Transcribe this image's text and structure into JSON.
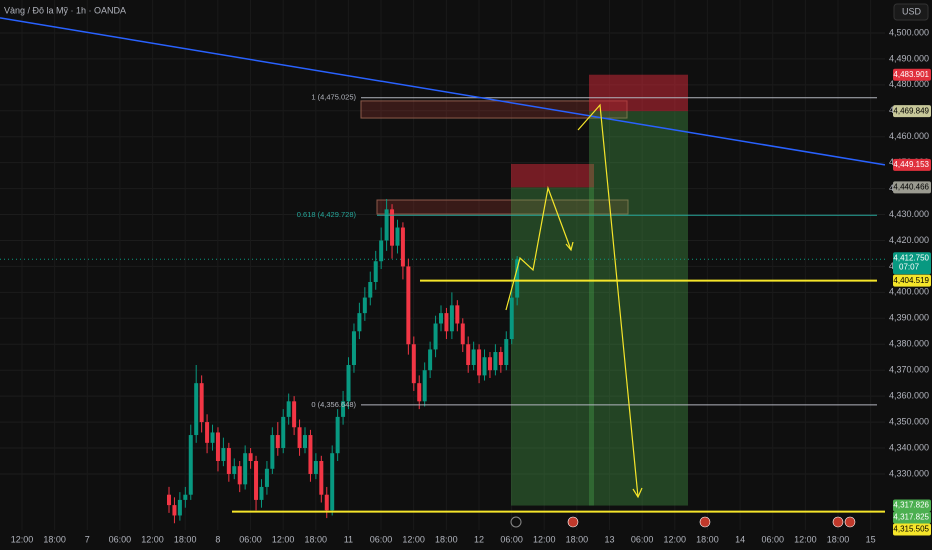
{
  "header": {
    "symbol": "Vàng / Đô la Mỹ · 1h · OANDA",
    "currency": "USD"
  },
  "chart_data": {
    "type": "candlestick",
    "up_color": "#089981",
    "down_color": "#f23645",
    "open": [
      4322,
      4318,
      4314,
      4320,
      4322,
      4345,
      4365,
      4350,
      4342,
      4346,
      4335,
      4340,
      4330,
      4333,
      4326,
      4338,
      4335,
      4320,
      4325,
      4332,
      4345,
      4340,
      4352,
      4358,
      4348,
      4340,
      4345,
      4330,
      4335,
      4322,
      4316,
      4338,
      4352,
      4358,
      4372,
      4385,
      4392,
      4398,
      4404,
      4412,
      4420,
      4432,
      4418,
      4425,
      4410,
      4380,
      4365,
      4358,
      4370,
      4378,
      4388,
      4392,
      4385,
      4395,
      4388,
      4380,
      4372,
      4378,
      4368,
      4375,
      4370,
      4377,
      4372,
      4382,
      4398
    ],
    "high": [
      4325,
      4321,
      4323,
      4325,
      4349,
      4372,
      4368,
      4353,
      4349,
      4348,
      4344,
      4342,
      4336,
      4335,
      4341,
      4340,
      4337,
      4328,
      4335,
      4348,
      4350,
      4355,
      4361,
      4360,
      4351,
      4348,
      4347,
      4338,
      4337,
      4325,
      4341,
      4355,
      4362,
      4375,
      4388,
      4396,
      4402,
      4408,
      4416,
      4425,
      4436,
      4434,
      4428,
      4427,
      4413,
      4383,
      4368,
      4373,
      4381,
      4391,
      4395,
      4394,
      4400,
      4397,
      4390,
      4383,
      4381,
      4380,
      4378,
      4377,
      4380,
      4379,
      4385,
      4401,
      4414
    ],
    "low": [
      4315,
      4311,
      4312,
      4317,
      4320,
      4342,
      4346,
      4338,
      4339,
      4331,
      4333,
      4327,
      4328,
      4323,
      4324,
      4332,
      4316,
      4317,
      4322,
      4330,
      4337,
      4338,
      4349,
      4345,
      4337,
      4338,
      4327,
      4328,
      4319,
      4313,
      4314,
      4335,
      4349,
      4355,
      4369,
      4382,
      4389,
      4395,
      4401,
      4409,
      4416,
      4413,
      4415,
      4405,
      4376,
      4362,
      4355,
      4356,
      4367,
      4375,
      4385,
      4382,
      4382,
      4385,
      4377,
      4369,
      4370,
      4365,
      4366,
      4367,
      4368,
      4369,
      4370,
      4380,
      4395
    ],
    "close": [
      4318,
      4314,
      4320,
      4322,
      4345,
      4365,
      4350,
      4342,
      4346,
      4335,
      4340,
      4330,
      4333,
      4326,
      4338,
      4335,
      4320,
      4325,
      4332,
      4345,
      4340,
      4352,
      4358,
      4348,
      4340,
      4345,
      4330,
      4335,
      4322,
      4316,
      4338,
      4352,
      4358,
      4372,
      4385,
      4392,
      4398,
      4404,
      4412,
      4420,
      4432,
      4418,
      4425,
      4410,
      4380,
      4365,
      4358,
      4370,
      4378,
      4388,
      4392,
      4385,
      4395,
      4388,
      4380,
      4372,
      4378,
      4368,
      4375,
      4370,
      4377,
      4372,
      4382,
      4398,
      4412.75
    ],
    "ylim": [
      4308.4,
      4512.7
    ],
    "yticks": [
      {
        "value": 4330,
        "label": "4,330.000"
      },
      {
        "value": 4340,
        "label": "4,340.000"
      },
      {
        "value": 4350,
        "label": "4,350.000"
      },
      {
        "value": 4360,
        "label": "4,360.000"
      },
      {
        "value": 4370,
        "label": "4,370.000"
      },
      {
        "value": 4380,
        "label": "4,380.000"
      },
      {
        "value": 4390,
        "label": "4,390.000"
      },
      {
        "value": 4400,
        "label": "4,400.000"
      },
      {
        "value": 4410,
        "label": "4,410.000"
      },
      {
        "value": 4420,
        "label": "4,420.000"
      },
      {
        "value": 4430,
        "label": "4,430.000"
      },
      {
        "value": 4440,
        "label": "4,440.000"
      },
      {
        "value": 4450,
        "label": "4,450.000"
      },
      {
        "value": 4460,
        "label": "4,460.000"
      },
      {
        "value": 4470,
        "label": "4,470.000"
      },
      {
        "value": 4480,
        "label": "4,480.000"
      },
      {
        "value": 4490,
        "label": "4,490.000"
      },
      {
        "value": 4500,
        "label": "4,500.000"
      }
    ],
    "x_labels": [
      "12:00",
      "18:00",
      "7",
      "06:00",
      "12:00",
      "18:00",
      "8",
      "06:00",
      "12:00",
      "18:00",
      "11",
      "06:00",
      "12:00",
      "18:00",
      "12",
      "06:00",
      "12:00",
      "18:00",
      "13",
      "06:00",
      "12:00",
      "18:00",
      "14",
      "06:00",
      "12:00",
      "18:00",
      "15"
    ],
    "trendline": {
      "start": 4505.8,
      "end": 4449.153,
      "color": "#2962ff"
    },
    "fib_levels": [
      {
        "value": 4475.025,
        "label": "1 (4,475.025)",
        "color": "#b2b5be"
      },
      {
        "value": 4429.728,
        "label": "0.618 (4,429.728)",
        "color": "#26a69a"
      },
      {
        "value": 4356.648,
        "label": "0 (4,356.648)",
        "color": "#b2b5be"
      }
    ],
    "zones": [
      {
        "top": 4473.8,
        "bottom": 4467.2
      },
      {
        "top": 4435.6,
        "bottom": 4430.2
      }
    ],
    "positions": [
      {
        "stop": 4449.5,
        "entry": 4440.466,
        "target": 4317.826
      },
      {
        "stop": 4483.901,
        "entry": 4469.849,
        "target": 4317.825
      }
    ],
    "horizontal_lines": [
      {
        "value": 4404.519,
        "color": "#f5e52a"
      },
      {
        "value": 4315.505,
        "color": "#f5e52a"
      }
    ],
    "current_price": {
      "value": 4412.75,
      "label": "4,412.750",
      "countdown": "07:07",
      "color": "#089981"
    },
    "price_labels": [
      {
        "value": 4483.901,
        "label": "4,483.901",
        "color": "#e0303d"
      },
      {
        "value": 4469.849,
        "label": "4,469.849",
        "color": "#c8c89a"
      },
      {
        "value": 4449.153,
        "label": "4,449.153",
        "color": "#e0303d"
      },
      {
        "value": 4440.466,
        "label": "4,440.466",
        "color": "#9a9a90"
      },
      {
        "value": 4404.519,
        "label": "4,404.519",
        "color": "#f5e52a"
      },
      {
        "value": 4317.826,
        "label": "4,317.826",
        "color": "#4caf50"
      },
      {
        "value": 4317.825,
        "label": "4,317.825",
        "color": "#4caf50"
      },
      {
        "value": 4315.505,
        "label": "4,315.505",
        "color": "#f5e52a"
      }
    ]
  }
}
